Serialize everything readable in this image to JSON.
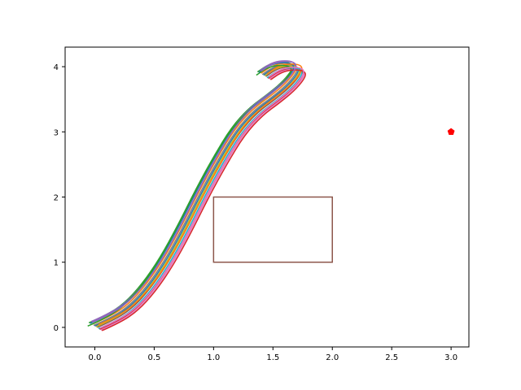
{
  "chart_data": {
    "type": "line",
    "title": "",
    "xlabel": "",
    "ylabel": "",
    "xlim": [
      -0.25,
      3.15
    ],
    "ylim": [
      -0.3,
      4.3
    ],
    "x_ticks": [
      0.0,
      0.5,
      1.0,
      1.5,
      2.0,
      2.5,
      3.0
    ],
    "x_tick_labels": [
      "0.0",
      "0.5",
      "1.0",
      "1.5",
      "2.0",
      "2.5",
      "3.0"
    ],
    "y_ticks": [
      0,
      1,
      2,
      3,
      4
    ],
    "y_tick_labels": [
      "0",
      "1",
      "2",
      "3",
      "4"
    ],
    "grid": false,
    "base_path": [
      [
        0.0,
        0.0
      ],
      [
        0.15,
        0.12
      ],
      [
        0.3,
        0.3
      ],
      [
        0.45,
        0.6
      ],
      [
        0.6,
        1.0
      ],
      [
        0.75,
        1.5
      ],
      [
        0.9,
        2.05
      ],
      [
        1.05,
        2.55
      ],
      [
        1.2,
        3.0
      ],
      [
        1.35,
        3.3
      ],
      [
        1.5,
        3.5
      ],
      [
        1.62,
        3.68
      ],
      [
        1.7,
        3.85
      ],
      [
        1.72,
        3.95
      ],
      [
        1.68,
        4.0
      ],
      [
        1.58,
        4.0
      ],
      [
        1.5,
        3.95
      ],
      [
        1.42,
        3.85
      ]
    ],
    "series": [
      {
        "color": "#1f77b4",
        "dx": 0.0,
        "dy": 0.02
      },
      {
        "color": "#ff7f0e",
        "dx": -0.02,
        "dy": 0.05
      },
      {
        "color": "#2ca02c",
        "dx": -0.05,
        "dy": 0.07
      },
      {
        "color": "#d62728",
        "dx": 0.04,
        "dy": -0.03
      },
      {
        "color": "#9467bd",
        "dx": -0.03,
        "dy": 0.09
      },
      {
        "color": "#8c564b",
        "dx": 0.02,
        "dy": 0.0
      },
      {
        "color": "#e377c2",
        "dx": 0.05,
        "dy": -0.04
      },
      {
        "color": "#7f7f7f",
        "dx": -0.01,
        "dy": 0.03
      },
      {
        "color": "#bcbd22",
        "dx": 0.01,
        "dy": 0.01
      },
      {
        "color": "#17becf",
        "dx": 0.03,
        "dy": -0.02
      },
      {
        "color": "#1f77b4",
        "dx": -0.04,
        "dy": 0.06
      },
      {
        "color": "#ff7f0e",
        "dx": 0.03,
        "dy": 0.04
      },
      {
        "color": "#2ca02c",
        "dx": -0.06,
        "dy": 0.02
      },
      {
        "color": "#d62728",
        "dx": 0.06,
        "dy": -0.05
      },
      {
        "color": "#9467bd",
        "dx": -0.02,
        "dy": 0.08
      },
      {
        "color": "#e377c2",
        "dx": 0.045,
        "dy": -0.01
      }
    ],
    "rectangle": {
      "x0": 1.0,
      "y0": 1.0,
      "x1": 2.0,
      "y1": 2.0,
      "color": "#8c564b"
    },
    "goal_marker": {
      "x": 3.0,
      "y": 3.0,
      "color": "#ff0000",
      "shape": "pentagon"
    }
  }
}
